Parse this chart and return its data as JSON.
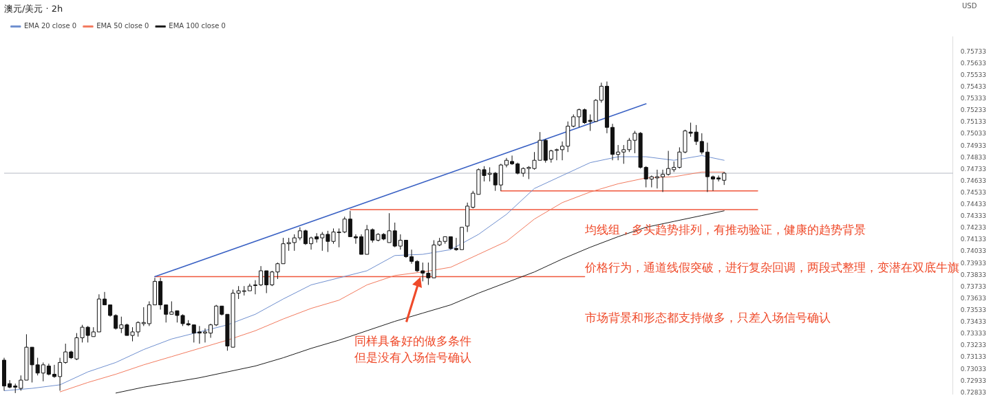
{
  "chart_data": {
    "type": "candlestick",
    "title": "澳元/美元 · 2h",
    "categories": [
      null,
      null,
      null,
      null,
      null,
      null,
      null,
      null,
      null,
      null,
      null,
      null,
      null,
      null,
      null,
      null,
      null,
      null,
      null,
      null,
      null,
      null,
      null,
      null,
      null,
      null,
      null,
      null,
      null,
      null,
      null,
      null,
      null,
      null,
      null,
      null,
      null,
      null,
      null,
      null,
      null,
      null,
      null,
      null,
      null,
      null,
      null,
      null,
      null,
      null,
      null,
      null,
      null,
      null,
      null,
      null,
      null,
      null,
      null,
      null,
      null,
      null,
      null,
      null,
      null,
      null,
      null,
      null,
      null,
      null,
      null,
      null,
      null,
      null,
      null,
      null,
      null,
      null,
      null,
      null,
      null,
      null,
      null,
      null,
      null,
      null,
      null,
      null,
      null,
      null,
      null,
      null,
      null,
      null,
      null,
      null,
      null,
      null,
      null,
      null,
      null,
      null,
      null,
      null,
      null,
      null,
      null,
      null,
      null,
      null,
      null,
      null,
      null,
      null,
      null,
      null,
      null,
      null,
      null,
      null,
      null,
      null,
      null,
      null,
      null,
      null,
      null,
      null,
      null,
      null,
      null,
      null,
      null,
      null,
      null,
      null,
      null,
      null,
      null,
      null,
      null,
      null,
      null,
      null,
      null,
      null,
      null,
      null,
      null,
      null,
      null,
      null,
      null,
      null,
      null,
      null,
      null,
      null,
      null,
      null,
      null,
      null,
      null,
      null,
      null,
      null,
      null,
      null,
      null,
      null,
      null
    ],
    "ohlc": [
      [
        0.7311,
        0.7313,
        0.7285,
        0.7289
      ],
      [
        0.7291,
        0.7294,
        0.7287,
        0.7288
      ],
      [
        0.7289,
        0.7291,
        0.7283,
        0.7288
      ],
      [
        0.7287,
        0.7298,
        0.7285,
        0.7294
      ],
      [
        0.7294,
        0.7333,
        0.7294,
        0.7322
      ],
      [
        0.7322,
        0.7322,
        0.7292,
        0.7307
      ],
      [
        0.7307,
        0.7313,
        0.7298,
        0.73
      ],
      [
        0.73,
        0.7309,
        0.7293,
        0.7307
      ],
      [
        0.7306,
        0.7308,
        0.7298,
        0.7299
      ],
      [
        0.7299,
        0.7307,
        0.7296,
        0.7297
      ],
      [
        0.7297,
        0.7313,
        0.7285,
        0.7309
      ],
      [
        0.7309,
        0.7325,
        0.7308,
        0.7318
      ],
      [
        0.7318,
        0.7319,
        0.7312,
        0.7313
      ],
      [
        0.7312,
        0.7334,
        0.7311,
        0.733
      ],
      [
        0.733,
        0.7341,
        0.7326,
        0.7339
      ],
      [
        0.7339,
        0.734,
        0.7326,
        0.7332
      ],
      [
        0.7331,
        0.7339,
        0.7331,
        0.7335
      ],
      [
        0.7335,
        0.7367,
        0.7335,
        0.7363
      ],
      [
        0.7363,
        0.7369,
        0.7358,
        0.7358
      ],
      [
        0.7358,
        0.7358,
        0.7348,
        0.7349
      ],
      [
        0.7349,
        0.735,
        0.7337,
        0.7338
      ],
      [
        0.7338,
        0.7348,
        0.7334,
        0.7341
      ],
      [
        0.7341,
        0.7342,
        0.7332,
        0.7332
      ],
      [
        0.7332,
        0.7339,
        0.7327,
        0.7335
      ],
      [
        0.7335,
        0.7344,
        0.7331,
        0.7343
      ],
      [
        0.7342,
        0.7356,
        0.734,
        0.7343
      ],
      [
        0.7342,
        0.7361,
        0.734,
        0.7358
      ],
      [
        0.7358,
        0.7381,
        0.7358,
        0.7378
      ],
      [
        0.7378,
        0.7381,
        0.7354,
        0.7358
      ],
      [
        0.7358,
        0.7358,
        0.7343,
        0.735
      ],
      [
        0.735,
        0.7361,
        0.735,
        0.7352
      ],
      [
        0.7353,
        0.7353,
        0.7343,
        0.7349
      ],
      [
        0.7349,
        0.735,
        0.734,
        0.7342
      ],
      [
        0.7342,
        0.7345,
        0.734,
        0.7341
      ],
      [
        0.7341,
        0.7341,
        0.7326,
        0.7334
      ],
      [
        0.7335,
        0.734,
        0.7325,
        0.7334
      ],
      [
        0.7334,
        0.7338,
        0.7326,
        0.7335
      ],
      [
        0.7334,
        0.7342,
        0.733,
        0.7341
      ],
      [
        0.7341,
        0.7358,
        0.734,
        0.7357
      ],
      [
        0.7357,
        0.7357,
        0.7349,
        0.735
      ],
      [
        0.735,
        0.735,
        0.7319,
        0.7323
      ],
      [
        0.7322,
        0.7371,
        0.7322,
        0.7368
      ],
      [
        0.7368,
        0.7374,
        0.7363,
        0.737
      ],
      [
        0.737,
        0.7374,
        0.7366,
        0.737
      ],
      [
        0.737,
        0.7376,
        0.737,
        0.7374
      ],
      [
        0.7375,
        0.7379,
        0.7367,
        0.7375
      ],
      [
        0.7375,
        0.7391,
        0.7374,
        0.7387
      ],
      [
        0.7387,
        0.7387,
        0.7368,
        0.7375
      ],
      [
        0.7375,
        0.7387,
        0.7374,
        0.7386
      ],
      [
        0.7386,
        0.7394,
        0.738,
        0.7393
      ],
      [
        0.7393,
        0.7415,
        0.7393,
        0.741
      ],
      [
        0.741,
        0.7415,
        0.7404,
        0.7411
      ],
      [
        0.7411,
        0.7418,
        0.7404,
        0.7415
      ],
      [
        0.7415,
        0.7424,
        0.7413,
        0.7421
      ],
      [
        0.7421,
        0.7422,
        0.7409,
        0.741
      ],
      [
        0.741,
        0.7416,
        0.7405,
        0.7415
      ],
      [
        0.7416,
        0.7419,
        0.7411,
        0.7414
      ],
      [
        0.7415,
        0.742,
        0.7404,
        0.7418
      ],
      [
        0.7418,
        0.7421,
        0.7403,
        0.7412
      ],
      [
        0.7412,
        0.7423,
        0.741,
        0.742
      ],
      [
        0.742,
        0.7423,
        0.7407,
        0.742
      ],
      [
        0.742,
        0.7433,
        0.7419,
        0.7431
      ],
      [
        0.7431,
        0.7438,
        0.7416,
        0.7416
      ],
      [
        0.7416,
        0.7418,
        0.741,
        0.7415
      ],
      [
        0.7416,
        0.7418,
        0.7401,
        0.7401
      ],
      [
        0.7401,
        0.7426,
        0.7401,
        0.7422
      ],
      [
        0.7422,
        0.7423,
        0.7411,
        0.7413
      ],
      [
        0.7413,
        0.7419,
        0.7412,
        0.7418
      ],
      [
        0.7418,
        0.7419,
        0.7413,
        0.7414
      ],
      [
        0.7411,
        0.7436,
        0.7411,
        0.7421
      ],
      [
        0.7421,
        0.7428,
        0.7407,
        0.7408
      ],
      [
        0.7408,
        0.7418,
        0.7405,
        0.7413
      ],
      [
        0.7413,
        0.7413,
        0.7398,
        0.7399
      ],
      [
        0.7399,
        0.7405,
        0.7393,
        0.7395
      ],
      [
        0.7395,
        0.7396,
        0.7386,
        0.7387
      ],
      [
        0.7387,
        0.7394,
        0.7378,
        0.7385
      ],
      [
        0.7385,
        0.7394,
        0.7375,
        0.7381
      ],
      [
        0.7381,
        0.7413,
        0.7381,
        0.7409
      ],
      [
        0.7409,
        0.7415,
        0.7408,
        0.7412
      ],
      [
        0.7412,
        0.7416,
        0.741,
        0.7416
      ],
      [
        0.7416,
        0.7416,
        0.7405,
        0.7406
      ],
      [
        0.7406,
        0.7415,
        0.7404,
        0.7405
      ],
      [
        0.7405,
        0.7424,
        0.7405,
        0.7424
      ],
      [
        0.7425,
        0.7445,
        0.742,
        0.7442
      ],
      [
        0.7441,
        0.7455,
        0.744,
        0.7453
      ],
      [
        0.7452,
        0.7474,
        0.7452,
        0.7473
      ],
      [
        0.7473,
        0.7476,
        0.7463,
        0.7468
      ],
      [
        0.7469,
        0.7475,
        0.7463,
        0.747
      ],
      [
        0.747,
        0.7471,
        0.7455,
        0.746
      ],
      [
        0.746,
        0.7478,
        0.7455,
        0.7477
      ],
      [
        0.7477,
        0.7483,
        0.7475,
        0.7481
      ],
      [
        0.748,
        0.7485,
        0.7477,
        0.7478
      ],
      [
        0.7478,
        0.7479,
        0.7469,
        0.747
      ],
      [
        0.747,
        0.7475,
        0.7467,
        0.7474
      ],
      [
        0.7474,
        0.7476,
        0.7465,
        0.7475
      ],
      [
        0.7474,
        0.7488,
        0.7473,
        0.7481
      ],
      [
        0.7481,
        0.7505,
        0.7481,
        0.7498
      ],
      [
        0.7498,
        0.7499,
        0.7479,
        0.7481
      ],
      [
        0.7482,
        0.749,
        0.7479,
        0.7489
      ],
      [
        0.749,
        0.7491,
        0.7481,
        0.749
      ],
      [
        0.749,
        0.7497,
        0.7481,
        0.7493
      ],
      [
        0.7493,
        0.7514,
        0.7488,
        0.751
      ],
      [
        0.751,
        0.752,
        0.7509,
        0.7518
      ],
      [
        0.7518,
        0.7525,
        0.7509,
        0.7524
      ],
      [
        0.7524,
        0.7525,
        0.7512,
        0.7513
      ],
      [
        0.7515,
        0.752,
        0.7506,
        0.7514
      ],
      [
        0.7514,
        0.7533,
        0.7514,
        0.7532
      ],
      [
        0.7532,
        0.7547,
        0.753,
        0.7544
      ],
      [
        0.7544,
        0.7548,
        0.7504,
        0.7509
      ],
      [
        0.7509,
        0.7512,
        0.7481,
        0.7486
      ],
      [
        0.7486,
        0.7494,
        0.7481,
        0.7488
      ],
      [
        0.7488,
        0.7494,
        0.7478,
        0.749
      ],
      [
        0.749,
        0.75,
        0.7488,
        0.7498
      ],
      [
        0.7498,
        0.7506,
        0.7487,
        0.7504
      ],
      [
        0.7504,
        0.7505,
        0.7474,
        0.7475
      ],
      [
        0.7475,
        0.7476,
        0.7458,
        0.7465
      ],
      [
        0.7465,
        0.7468,
        0.7458,
        0.7467
      ],
      [
        0.7466,
        0.7473,
        0.7457,
        0.7467
      ],
      [
        0.7467,
        0.7473,
        0.7454,
        0.7469
      ],
      [
        0.7469,
        0.7489,
        0.7468,
        0.7474
      ],
      [
        0.7473,
        0.748,
        0.7471,
        0.7475
      ],
      [
        0.7475,
        0.7492,
        0.7474,
        0.7488
      ],
      [
        0.7488,
        0.7507,
        0.7487,
        0.7506
      ],
      [
        0.7505,
        0.7513,
        0.7501,
        0.7504
      ],
      [
        0.7505,
        0.7511,
        0.7494,
        0.7497
      ],
      [
        0.7497,
        0.7504,
        0.7486,
        0.7488
      ],
      [
        0.7488,
        0.7496,
        0.7454,
        0.7467
      ],
      [
        0.7467,
        0.7468,
        0.7455,
        0.7465
      ],
      [
        0.7466,
        0.7468,
        0.7463,
        0.7465
      ],
      [
        0.7464,
        0.7471,
        0.746,
        0.747
      ],
      null,
      null,
      null,
      null,
      null,
      null,
      null,
      null,
      null,
      null,
      null,
      null,
      null,
      null,
      null,
      null,
      null,
      null,
      null,
      null,
      null,
      null,
      null,
      null,
      null,
      null,
      null,
      null,
      null,
      null,
      null,
      null,
      null,
      null,
      null,
      null,
      null,
      null,
      null,
      null,
      null
    ],
    "series": [
      {
        "name": "EMA 20 close 0",
        "type": "line",
        "color": "#6f8fcf",
        "values": [
          0.7285,
          null,
          null,
          null,
          null,
          0.7287,
          null,
          null,
          null,
          null,
          0.729,
          null,
          null,
          null,
          null,
          0.7301,
          null,
          null,
          null,
          null,
          0.7309,
          null,
          null,
          null,
          null,
          0.732,
          null,
          null,
          null,
          null,
          0.7329,
          null,
          null,
          null,
          null,
          0.7335,
          null,
          null,
          null,
          null,
          0.7341,
          null,
          null,
          null,
          null,
          0.735,
          null,
          null,
          null,
          null,
          0.7363,
          null,
          null,
          null,
          null,
          0.7375,
          null,
          null,
          null,
          null,
          0.7381,
          null,
          null,
          null,
          null,
          0.7387,
          null,
          null,
          null,
          null,
          0.74,
          null,
          null,
          null,
          null,
          0.7401,
          null,
          null,
          null,
          null,
          0.7405,
          null,
          null,
          null,
          null,
          0.7418,
          null,
          null,
          null,
          null,
          0.7435,
          null,
          null,
          null,
          null,
          0.7457,
          null,
          null,
          null,
          null,
          0.7468,
          null,
          null,
          null,
          null,
          0.7479,
          null,
          null,
          null,
          null,
          0.7484,
          null,
          null,
          null,
          null,
          0.7484,
          null,
          null,
          null,
          null,
          0.7481,
          null,
          null,
          null,
          null,
          0.7485,
          null,
          null,
          null,
          0.7481,
          null,
          null,
          null,
          null,
          null,
          null,
          null,
          null,
          null,
          null,
          null,
          null,
          null,
          null,
          null,
          null,
          null,
          null,
          null,
          null,
          null,
          null,
          null,
          null,
          null,
          null,
          null,
          null,
          null,
          null,
          null,
          null,
          null,
          null,
          null,
          null,
          null,
          null,
          null,
          null,
          null
        ]
      },
      {
        "name": "EMA 50 close 0",
        "type": "line",
        "color": "#f27a5e",
        "values": [
          null,
          null,
          null,
          null,
          null,
          null,
          null,
          null,
          null,
          null,
          0.7284,
          null,
          null,
          null,
          null,
          0.7292,
          null,
          null,
          null,
          null,
          0.7299,
          null,
          null,
          null,
          null,
          0.7307,
          null,
          null,
          null,
          null,
          0.7314,
          null,
          null,
          null,
          null,
          0.7321,
          null,
          null,
          null,
          null,
          0.7328,
          null,
          null,
          null,
          null,
          0.7336,
          null,
          null,
          null,
          null,
          0.7346,
          null,
          null,
          null,
          null,
          0.7355,
          null,
          null,
          null,
          null,
          0.7362,
          null,
          null,
          null,
          null,
          0.7375,
          null,
          null,
          null,
          null,
          0.7383,
          null,
          null,
          null,
          null,
          0.7386,
          null,
          null,
          null,
          null,
          0.739,
          null,
          null,
          null,
          null,
          0.7401,
          null,
          null,
          null,
          null,
          0.7412,
          null,
          null,
          null,
          null,
          0.7431,
          null,
          null,
          null,
          null,
          0.7445,
          null,
          null,
          null,
          null,
          0.7454,
          null,
          null,
          null,
          null,
          0.7461,
          null,
          null,
          null,
          null,
          0.7466,
          null,
          null,
          null,
          null,
          0.7467,
          null,
          null,
          null,
          null,
          0.7471,
          null,
          null,
          null,
          0.7471,
          null,
          null,
          null,
          null,
          null,
          null,
          null,
          null,
          null,
          null,
          null,
          null,
          null,
          null,
          null,
          null,
          null,
          null,
          null,
          null,
          null,
          null,
          null,
          null,
          null,
          null,
          null,
          null,
          null,
          null,
          null,
          null,
          null,
          null,
          null,
          null,
          null,
          null,
          null,
          null,
          null
        ]
      },
      {
        "name": "EMA 100 close 0",
        "type": "line",
        "color": "#1a1a1a",
        "values": [
          null,
          null,
          null,
          null,
          null,
          null,
          null,
          null,
          null,
          null,
          null,
          null,
          null,
          null,
          null,
          null,
          null,
          null,
          null,
          null,
          0.7283,
          null,
          null,
          null,
          null,
          0.7288,
          null,
          null,
          null,
          null,
          0.7292,
          null,
          null,
          null,
          null,
          0.7296,
          null,
          null,
          null,
          null,
          0.7301,
          null,
          null,
          null,
          null,
          0.7306,
          null,
          null,
          null,
          null,
          0.7313,
          null,
          null,
          null,
          null,
          0.7321,
          null,
          null,
          null,
          null,
          0.7328,
          null,
          null,
          null,
          null,
          0.7336,
          null,
          null,
          null,
          null,
          0.7344,
          null,
          null,
          null,
          null,
          0.7351,
          null,
          null,
          null,
          null,
          0.7358,
          null,
          null,
          null,
          null,
          0.7368,
          null,
          null,
          null,
          null,
          0.7377,
          null,
          null,
          null,
          null,
          0.7386,
          null,
          null,
          null,
          null,
          0.7397,
          null,
          null,
          null,
          null,
          0.7407,
          null,
          null,
          null,
          null,
          0.7416,
          null,
          null,
          null,
          null,
          0.7424,
          null,
          null,
          null,
          null,
          0.7429,
          null,
          null,
          null,
          null,
          0.7434,
          null,
          null,
          null,
          0.7438,
          null,
          null,
          null,
          null,
          null,
          null,
          null,
          null,
          null,
          null,
          null,
          null,
          null,
          null,
          null,
          null,
          null,
          null,
          null,
          null,
          null,
          null,
          null,
          null,
          null,
          null,
          null,
          null,
          null,
          null,
          null,
          null,
          null,
          null,
          null,
          null,
          null,
          null,
          null,
          null,
          null
        ]
      },
      {
        "type": "line",
        "color": "#3b62c4",
        "values": [
          null,
          null,
          null,
          null,
          null,
          null,
          null,
          null,
          null,
          null,
          null,
          null,
          null,
          null,
          null,
          null,
          null,
          null,
          null,
          null,
          null,
          null,
          null,
          null,
          null,
          null,
          null,
          0.7382,
          null,
          null,
          null,
          null,
          null,
          null,
          null,
          null,
          null,
          null,
          null,
          null,
          null,
          null,
          null,
          null,
          null,
          null,
          null,
          null,
          null,
          null,
          null,
          null,
          null,
          null,
          null,
          null,
          null,
          null,
          null,
          null,
          null,
          null,
          null,
          null,
          null,
          null,
          null,
          null,
          null,
          null,
          null,
          null,
          null,
          null,
          null,
          null,
          null,
          null,
          null,
          null,
          null,
          null,
          null,
          null,
          null,
          null,
          null,
          null,
          null,
          null,
          null,
          null,
          null,
          null,
          null,
          null,
          null,
          null,
          null,
          null,
          null,
          null,
          null,
          null,
          null,
          null,
          null,
          null,
          null,
          null,
          null,
          null,
          null,
          null,
          null,
          0.7529,
          null,
          null,
          null,
          null,
          null,
          null,
          null,
          null,
          null,
          null,
          null,
          null,
          null,
          null,
          null,
          null,
          null,
          null,
          null,
          null,
          null,
          null,
          null,
          null,
          null,
          null,
          null,
          null,
          null,
          null,
          null,
          null,
          null,
          null,
          null,
          null,
          null,
          null,
          null,
          null,
          null,
          null,
          null,
          null,
          null,
          null,
          null,
          null,
          null,
          null,
          null,
          null,
          null,
          null,
          null
        ]
      },
      {
        "type": "line",
        "color": "#f0553a",
        "values": [
          null,
          null,
          null,
          null,
          null,
          null,
          null,
          null,
          null,
          null,
          null,
          null,
          null,
          null,
          null,
          null,
          null,
          null,
          null,
          null,
          null,
          null,
          null,
          null,
          null,
          null,
          null,
          0.7382,
          null,
          null,
          null,
          null,
          null,
          null,
          null,
          null,
          null,
          null,
          null,
          null,
          null,
          null,
          null,
          null,
          null,
          null,
          null,
          null,
          null,
          null,
          null,
          null,
          null,
          null,
          null,
          null,
          null,
          null,
          null,
          null,
          null,
          null,
          null,
          null,
          null,
          null,
          null,
          null,
          null,
          null,
          null,
          null,
          null,
          null,
          null,
          null,
          null,
          null,
          null,
          null,
          null,
          null,
          null,
          null,
          null,
          null,
          null,
          null,
          null,
          null,
          null,
          null,
          null,
          null,
          null,
          null,
          null,
          null,
          null,
          null,
          null,
          null,
          null,
          null,
          0.7382,
          null,
          null,
          null,
          null,
          null,
          null,
          null,
          null,
          null,
          null,
          null,
          null,
          null,
          null,
          null,
          null,
          null,
          null,
          null,
          null,
          null,
          null,
          null,
          null,
          null,
          null,
          null,
          null,
          null,
          null,
          null,
          null,
          null,
          null,
          null,
          null,
          null,
          null,
          null,
          null,
          null,
          null,
          null,
          null,
          null,
          null,
          null,
          null,
          null,
          null,
          null,
          null,
          null,
          null,
          null,
          null,
          null,
          null,
          null,
          null,
          null,
          null,
          null,
          null,
          null,
          null
        ]
      },
      {
        "type": "line",
        "color": "#f0553a",
        "values": [
          null,
          null,
          null,
          null,
          null,
          null,
          null,
          null,
          null,
          null,
          null,
          null,
          null,
          null,
          null,
          null,
          null,
          null,
          null,
          null,
          null,
          null,
          null,
          null,
          null,
          null,
          null,
          null,
          null,
          null,
          null,
          null,
          null,
          null,
          null,
          null,
          null,
          null,
          null,
          null,
          null,
          null,
          null,
          null,
          null,
          null,
          null,
          null,
          null,
          null,
          null,
          null,
          null,
          null,
          null,
          null,
          null,
          null,
          null,
          null,
          null,
          null,
          0.7439,
          null,
          null,
          null,
          null,
          null,
          null,
          null,
          null,
          null,
          null,
          null,
          null,
          null,
          null,
          null,
          null,
          null,
          null,
          null,
          null,
          null,
          null,
          null,
          null,
          null,
          null,
          null,
          null,
          null,
          null,
          null,
          null,
          null,
          null,
          null,
          null,
          null,
          null,
          null,
          null,
          null,
          null,
          null,
          null,
          null,
          null,
          null,
          null,
          null,
          null,
          null,
          null,
          null,
          null,
          null,
          null,
          null,
          null,
          null,
          null,
          null,
          null,
          null,
          null,
          null,
          null,
          null,
          null,
          null,
          null,
          null,
          null,
          0.7439,
          null,
          null,
          null,
          null,
          null,
          null,
          null,
          null,
          null,
          null,
          null,
          null,
          null,
          null,
          null,
          null,
          null,
          null,
          null,
          null,
          null,
          null,
          null,
          null,
          null,
          null,
          null,
          null,
          null,
          null,
          null,
          null,
          null,
          null,
          null
        ]
      },
      {
        "type": "line",
        "color": "#f0553a",
        "values": [
          null,
          null,
          null,
          null,
          null,
          null,
          null,
          null,
          null,
          null,
          null,
          null,
          null,
          null,
          null,
          null,
          null,
          null,
          null,
          null,
          null,
          null,
          null,
          null,
          null,
          null,
          null,
          null,
          null,
          null,
          null,
          null,
          null,
          null,
          null,
          null,
          null,
          null,
          null,
          null,
          null,
          null,
          null,
          null,
          null,
          null,
          null,
          null,
          null,
          null,
          null,
          null,
          null,
          null,
          null,
          null,
          null,
          null,
          null,
          null,
          null,
          null,
          null,
          null,
          null,
          null,
          null,
          null,
          null,
          null,
          null,
          null,
          null,
          null,
          null,
          null,
          null,
          null,
          null,
          null,
          null,
          null,
          null,
          null,
          null,
          null,
          null,
          null,
          null,
          0.7455,
          null,
          null,
          null,
          null,
          null,
          null,
          null,
          null,
          null,
          null,
          null,
          null,
          null,
          null,
          null,
          null,
          null,
          null,
          null,
          null,
          null,
          null,
          null,
          null,
          null,
          null,
          null,
          null,
          null,
          null,
          null,
          null,
          null,
          null,
          null,
          null,
          null,
          null,
          null,
          null,
          null,
          null,
          null,
          null,
          null,
          0.7455,
          null,
          null,
          null,
          null,
          null,
          null,
          null,
          null,
          null,
          null,
          null,
          null,
          null,
          null,
          null,
          null,
          null,
          null,
          null,
          null,
          null,
          null,
          null,
          null,
          null,
          null,
          null,
          null,
          null,
          null,
          null,
          null,
          null,
          null,
          null
        ]
      }
    ],
    "ylim": [
      0.7282,
      0.7586
    ],
    "yticks": [
      0.72833,
      0.72933,
      0.73033,
      0.73133,
      0.73233,
      0.73333,
      0.73433,
      0.73533,
      0.73633,
      0.73733,
      0.73833,
      0.73933,
      0.74033,
      0.74133,
      0.74233,
      0.74333,
      0.74433,
      0.74533,
      0.74633,
      0.74733,
      0.74833,
      0.74933,
      0.75033,
      0.75133,
      0.75233,
      0.75333,
      0.75433,
      0.75533,
      0.75633,
      0.75733
    ],
    "ref_lines": [
      {
        "axis": "y",
        "value": 0.747,
        "color": "#b4b8c4",
        "line_style": "solid"
      }
    ],
    "annotations": [
      "均线组，多头趋势排列，有推动验证，健康的趋势背景",
      "价格行为，通道线假突破，进行复杂回调，两段式整理，变潜在双底牛旗",
      "市场背景和形态都支持做多，只差入场信号确认",
      "同样具备好的做多条件",
      "但是没有入场信号确认",
      "USD"
    ],
    "grid": false,
    "legend": "top left",
    "tick_labels": "y",
    "marker": "none",
    "line_style": "solid"
  }
}
